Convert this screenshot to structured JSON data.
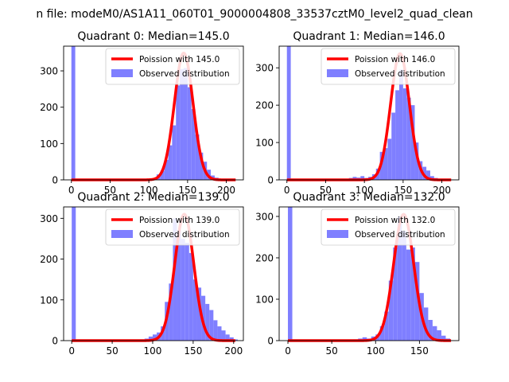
{
  "suptitle": "n file: modeM0/AS1A11_060T01_9000004808_33537cztM0_level2_quad_clean",
  "colors": {
    "hist": "#7f7fff",
    "curve": "#ff0000"
  },
  "chart_data": [
    {
      "type": "bar",
      "title": "Quadrant 0: Median=145.0",
      "xlim": [
        -10,
        222
      ],
      "ylim": [
        0,
        368
      ],
      "xticks": [
        0,
        50,
        100,
        150,
        200
      ],
      "yticks": [
        0,
        100,
        200,
        300
      ],
      "legend": [
        "Poission with 145.0",
        "Observed distribution"
      ],
      "legend_position": "upper-right",
      "curve": {
        "name": "Poission with 145.0",
        "mean": 145,
        "peak": 349,
        "x_range": [
          0,
          212
        ]
      },
      "bin_width": 5,
      "bins": [
        [
          0,
          368
        ],
        [
          105,
          2
        ],
        [
          110,
          15
        ],
        [
          115,
          25
        ],
        [
          120,
          55
        ],
        [
          125,
          95
        ],
        [
          130,
          150
        ],
        [
          135,
          260
        ],
        [
          140,
          305
        ],
        [
          145,
          308
        ],
        [
          150,
          255
        ],
        [
          155,
          195
        ],
        [
          160,
          125
        ],
        [
          165,
          75
        ],
        [
          170,
          50
        ],
        [
          175,
          28
        ],
        [
          180,
          12
        ],
        [
          185,
          6
        ],
        [
          190,
          3
        ],
        [
          195,
          2
        ],
        [
          205,
          1
        ]
      ]
    },
    {
      "type": "bar",
      "title": "Quadrant 1: Median=146.0",
      "xlim": [
        -10,
        222
      ],
      "ylim": [
        0,
        358
      ],
      "xticks": [
        0,
        50,
        100,
        150,
        200
      ],
      "yticks": [
        0,
        100,
        200,
        300
      ],
      "legend": [
        "Poission with 146.0",
        "Observed distribution"
      ],
      "legend_position": "upper-right",
      "curve": {
        "name": "Poission with 146.0",
        "mean": 146,
        "peak": 338,
        "x_range": [
          0,
          212
        ]
      },
      "bin_width": 5,
      "bins": [
        [
          0,
          358
        ],
        [
          75,
          3
        ],
        [
          80,
          5
        ],
        [
          85,
          8
        ],
        [
          90,
          6
        ],
        [
          95,
          10
        ],
        [
          100,
          5
        ],
        [
          105,
          8
        ],
        [
          110,
          15
        ],
        [
          115,
          30
        ],
        [
          120,
          75
        ],
        [
          125,
          85
        ],
        [
          130,
          110
        ],
        [
          135,
          180
        ],
        [
          140,
          240
        ],
        [
          145,
          295
        ],
        [
          150,
          245
        ],
        [
          155,
          220
        ],
        [
          160,
          200
        ],
        [
          165,
          100
        ],
        [
          170,
          50
        ],
        [
          175,
          35
        ],
        [
          180,
          25
        ],
        [
          185,
          10
        ],
        [
          190,
          5
        ],
        [
          200,
          2
        ]
      ]
    },
    {
      "type": "bar",
      "title": "Quadrant 2: Median=139.0",
      "xlim": [
        -10,
        212
      ],
      "ylim": [
        0,
        328
      ],
      "xticks": [
        0,
        50,
        100,
        150,
        200
      ],
      "yticks": [
        0,
        100,
        200,
        300
      ],
      "legend": [
        "Poission with 139.0",
        "Observed distribution"
      ],
      "legend_position": "upper-right",
      "curve": {
        "name": "Poission with 139.0",
        "mean": 139,
        "peak": 310,
        "x_range": [
          0,
          202
        ]
      },
      "bin_width": 5,
      "bins": [
        [
          0,
          328
        ],
        [
          70,
          2
        ],
        [
          85,
          3
        ],
        [
          90,
          5
        ],
        [
          95,
          10
        ],
        [
          100,
          15
        ],
        [
          105,
          20
        ],
        [
          110,
          35
        ],
        [
          115,
          95
        ],
        [
          120,
          140
        ],
        [
          125,
          300
        ],
        [
          130,
          270
        ],
        [
          135,
          250
        ],
        [
          140,
          240
        ],
        [
          145,
          215
        ],
        [
          150,
          150
        ],
        [
          155,
          130
        ],
        [
          160,
          110
        ],
        [
          165,
          90
        ],
        [
          170,
          75
        ],
        [
          175,
          50
        ],
        [
          180,
          35
        ],
        [
          185,
          25
        ],
        [
          190,
          15
        ],
        [
          195,
          8
        ],
        [
          200,
          3
        ]
      ]
    },
    {
      "type": "bar",
      "title": "Quadrant 3: Median=132.0",
      "xlim": [
        -10,
        195
      ],
      "ylim": [
        0,
        323
      ],
      "xticks": [
        0,
        50,
        100,
        150
      ],
      "yticks": [
        0,
        100,
        200,
        300
      ],
      "legend": [
        "Poission with 132.0",
        "Observed distribution"
      ],
      "legend_position": "upper-right",
      "curve": {
        "name": "Poission with 132.0",
        "mean": 132,
        "peak": 305,
        "x_range": [
          0,
          186
        ]
      },
      "bin_width": 5,
      "bins": [
        [
          0,
          323
        ],
        [
          55,
          2
        ],
        [
          75,
          3
        ],
        [
          80,
          5
        ],
        [
          85,
          8
        ],
        [
          90,
          5
        ],
        [
          95,
          10
        ],
        [
          100,
          15
        ],
        [
          105,
          35
        ],
        [
          110,
          70
        ],
        [
          115,
          145
        ],
        [
          120,
          225
        ],
        [
          125,
          300
        ],
        [
          130,
          265
        ],
        [
          135,
          220
        ],
        [
          140,
          225
        ],
        [
          145,
          190
        ],
        [
          150,
          115
        ],
        [
          155,
          80
        ],
        [
          160,
          50
        ],
        [
          165,
          35
        ],
        [
          170,
          25
        ],
        [
          175,
          12
        ],
        [
          180,
          5
        ]
      ]
    }
  ]
}
